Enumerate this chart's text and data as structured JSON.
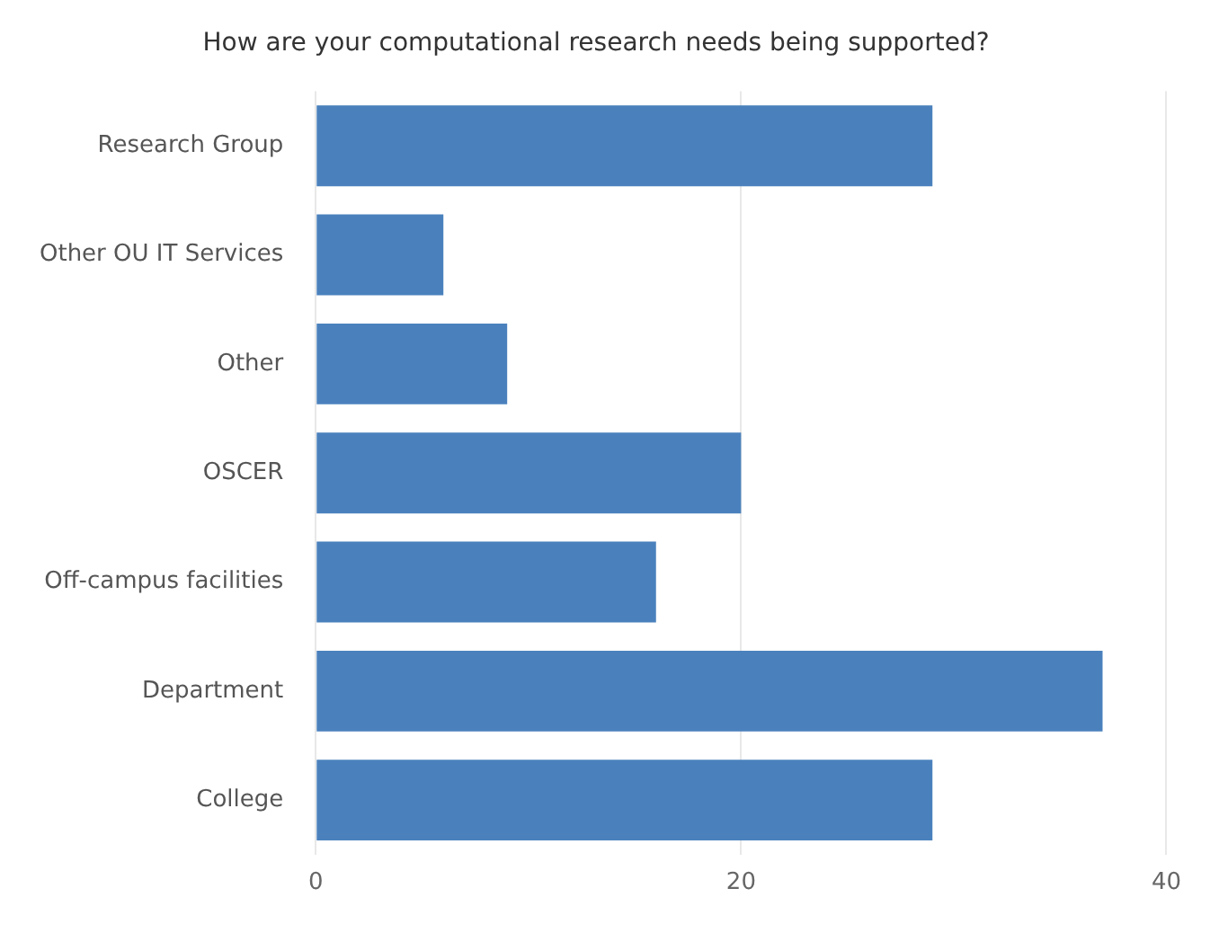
{
  "chart_data": {
    "type": "bar",
    "orientation": "horizontal",
    "title": "How are your computational research needs being supported?",
    "categories": [
      "Research Group",
      "Other OU IT Services",
      "Other",
      "OSCER",
      "Off-campus facilities",
      "Department",
      "College"
    ],
    "values": [
      29,
      6,
      9,
      20,
      16,
      37,
      29
    ],
    "color": "#4a81bd",
    "xlim": [
      0,
      40
    ],
    "xticks": [
      0,
      20,
      40
    ],
    "grid": "x",
    "legend": false
  }
}
